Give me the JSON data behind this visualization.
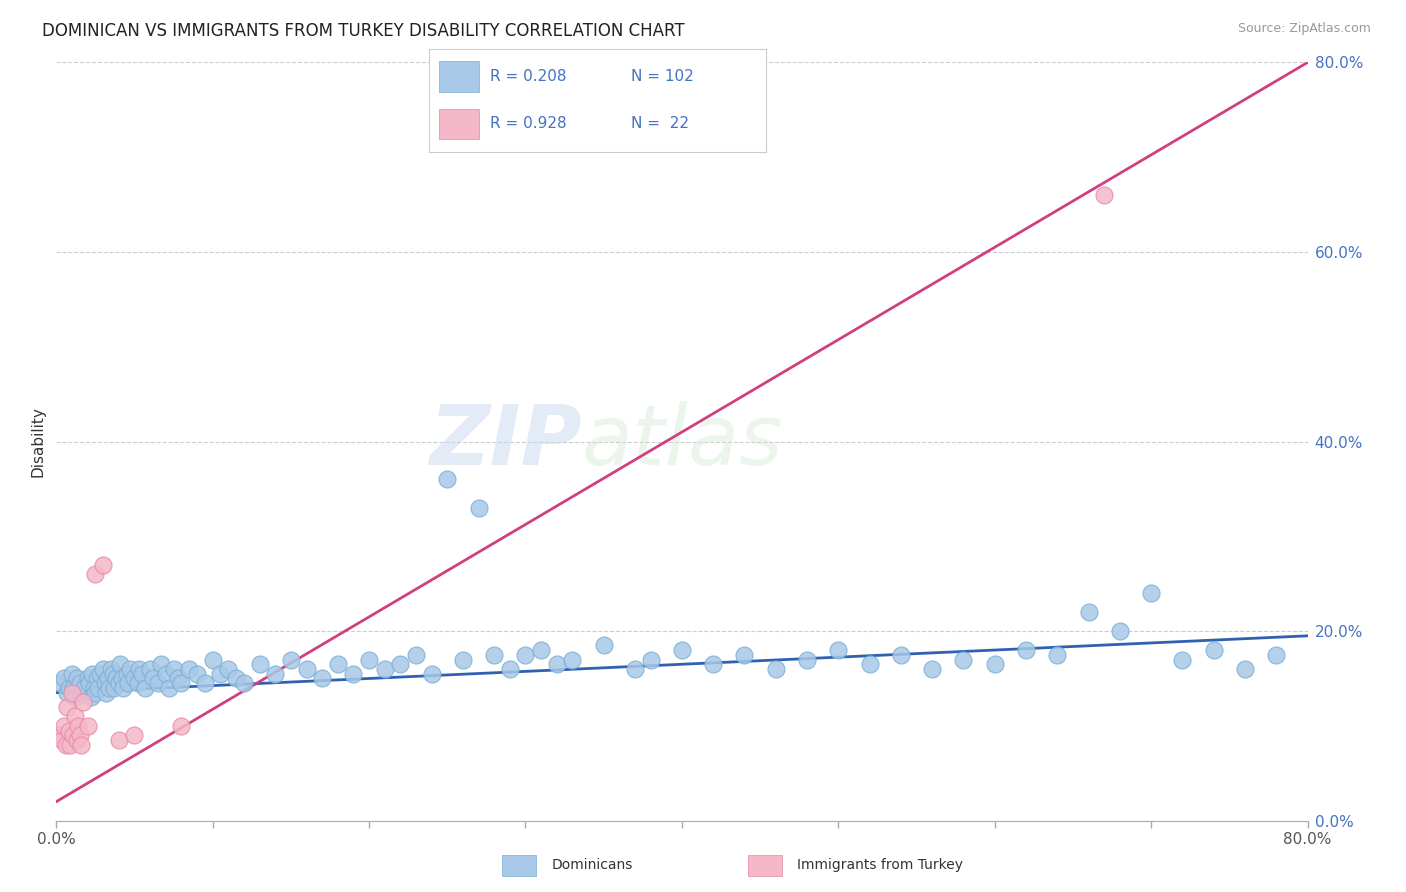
{
  "title": "DOMINICAN VS IMMIGRANTS FROM TURKEY DISABILITY CORRELATION CHART",
  "source": "Source: ZipAtlas.com",
  "ylabel": "Disability",
  "legend_r1": "R = 0.208",
  "legend_n1": "N = 102",
  "legend_r2": "R = 0.928",
  "legend_n2": "N =  22",
  "blue_color": "#a8c8e8",
  "blue_edge_color": "#7aafd4",
  "pink_color": "#f4b8c8",
  "pink_edge_color": "#e888a8",
  "blue_line_color": "#3060b0",
  "pink_line_color": "#d04080",
  "watermark_zip": "ZIP",
  "watermark_atlas": "atlas",
  "xmin": 0.0,
  "xmax": 80.0,
  "ymin": 0.0,
  "ymax": 80.0,
  "blue_trend_x": [
    0.0,
    80.0
  ],
  "blue_trend_y": [
    13.5,
    19.5
  ],
  "pink_trend_x": [
    0.0,
    80.0
  ],
  "pink_trend_y": [
    2.0,
    80.0
  ],
  "blue_scatter_x": [
    0.3,
    0.5,
    0.7,
    0.8,
    1.0,
    1.1,
    1.2,
    1.3,
    1.5,
    1.6,
    1.8,
    2.0,
    2.1,
    2.2,
    2.3,
    2.4,
    2.5,
    2.6,
    2.7,
    2.8,
    3.0,
    3.1,
    3.2,
    3.3,
    3.4,
    3.5,
    3.6,
    3.7,
    3.8,
    4.0,
    4.1,
    4.2,
    4.3,
    4.5,
    4.6,
    4.7,
    5.0,
    5.2,
    5.3,
    5.5,
    5.7,
    6.0,
    6.2,
    6.5,
    6.7,
    7.0,
    7.2,
    7.5,
    7.8,
    8.0,
    8.5,
    9.0,
    9.5,
    10.0,
    10.5,
    11.0,
    11.5,
    12.0,
    13.0,
    14.0,
    15.0,
    16.0,
    17.0,
    18.0,
    19.0,
    20.0,
    21.0,
    22.0,
    23.0,
    24.0,
    25.0,
    26.0,
    27.0,
    28.0,
    29.0,
    30.0,
    31.0,
    32.0,
    33.0,
    35.0,
    37.0,
    38.0,
    40.0,
    42.0,
    44.0,
    46.0,
    48.0,
    50.0,
    52.0,
    54.0,
    56.0,
    58.0,
    60.0,
    62.0,
    64.0,
    66.0,
    68.0,
    70.0,
    72.0,
    74.0,
    76.0,
    78.0
  ],
  "blue_scatter_y": [
    14.5,
    15.0,
    13.5,
    14.0,
    15.5,
    14.0,
    13.0,
    15.0,
    14.5,
    13.5,
    14.0,
    15.0,
    14.5,
    13.0,
    15.5,
    14.0,
    13.5,
    15.0,
    14.0,
    15.5,
    16.0,
    14.5,
    13.5,
    15.0,
    14.0,
    16.0,
    15.5,
    14.0,
    15.0,
    14.5,
    16.5,
    15.0,
    14.0,
    15.5,
    14.5,
    16.0,
    15.0,
    14.5,
    16.0,
    15.5,
    14.0,
    16.0,
    15.0,
    14.5,
    16.5,
    15.5,
    14.0,
    16.0,
    15.0,
    14.5,
    16.0,
    15.5,
    14.5,
    17.0,
    15.5,
    16.0,
    15.0,
    14.5,
    16.5,
    15.5,
    17.0,
    16.0,
    15.0,
    16.5,
    15.5,
    17.0,
    16.0,
    16.5,
    17.5,
    15.5,
    36.0,
    17.0,
    33.0,
    17.5,
    16.0,
    17.5,
    18.0,
    16.5,
    17.0,
    18.5,
    16.0,
    17.0,
    18.0,
    16.5,
    17.5,
    16.0,
    17.0,
    18.0,
    16.5,
    17.5,
    16.0,
    17.0,
    16.5,
    18.0,
    17.5,
    22.0,
    20.0,
    24.0,
    17.0,
    18.0,
    16.0,
    17.5
  ],
  "pink_scatter_x": [
    0.2,
    0.4,
    0.5,
    0.6,
    0.7,
    0.8,
    0.9,
    1.0,
    1.1,
    1.2,
    1.3,
    1.4,
    1.5,
    1.6,
    1.7,
    2.0,
    2.5,
    3.0,
    4.0,
    5.0,
    8.0,
    67.0
  ],
  "pink_scatter_y": [
    9.0,
    8.5,
    10.0,
    8.0,
    12.0,
    9.5,
    8.0,
    13.5,
    9.0,
    11.0,
    8.5,
    10.0,
    9.0,
    8.0,
    12.5,
    10.0,
    26.0,
    27.0,
    8.5,
    9.0,
    10.0,
    66.0
  ]
}
